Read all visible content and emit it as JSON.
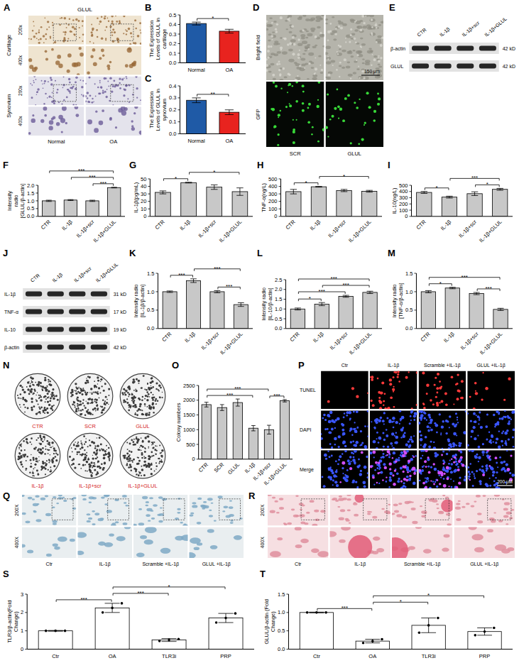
{
  "chart_data": [
    {
      "panel": "B",
      "type": "bar",
      "y_label": "The Expression Levels of GLUL in cartilage",
      "categories": [
        "Normal",
        "OA"
      ],
      "values": [
        0.41,
        0.33
      ],
      "errors": [
        0.015,
        0.02
      ],
      "colors": [
        "#1f5aa6",
        "#e8231f"
      ],
      "ylim": [
        0,
        0.5
      ],
      "yticks": [
        {
          "value": 0,
          "label": "0.0"
        },
        0.1,
        0.2,
        0.3,
        0.4,
        0.5
      ],
      "annotations": [
        {
          "from": "Normal",
          "to": "OA",
          "label": "*"
        }
      ]
    },
    {
      "panel": "C",
      "type": "bar",
      "y_label": "The Expression Levels of GLUL in synovium",
      "categories": [
        "Normal",
        "OA"
      ],
      "values": [
        0.28,
        0.18
      ],
      "errors": [
        0.02,
        0.02
      ],
      "colors": [
        "#1f5aa6",
        "#e8231f"
      ],
      "ylim": [
        0,
        0.4
      ],
      "yticks": [
        {
          "value": 0,
          "label": "0.0"
        },
        0.1,
        0.2,
        0.3,
        0.4
      ],
      "annotations": [
        {
          "from": "Normal",
          "to": "OA",
          "label": "**"
        }
      ]
    },
    {
      "panel": "F",
      "type": "bar",
      "y_label": "Intensity radio [GLUL/β-actin]",
      "categories": [
        "CTR",
        "IL-1β",
        "IL-1β+scr",
        "IL-1β+GLUL"
      ],
      "values": [
        1.0,
        1.05,
        1.0,
        1.85
      ],
      "errors": [
        0.04,
        0.03,
        0.04,
        0.02
      ],
      "color": "#c8c8c8",
      "ylim": [
        0,
        2
      ],
      "yticks": [
        {
          "value": 0,
          "label": "0.0"
        },
        0.5,
        {
          "value": 1,
          "label": "1.0"
        },
        1.5,
        {
          "value": 2,
          "label": "2.0"
        }
      ],
      "annotations": [
        {
          "from": "IL-1β+scr",
          "to": "IL-1β+GLUL",
          "label": "***"
        },
        {
          "from": "IL-1β",
          "to": "IL-1β+GLUL",
          "label": "***"
        },
        {
          "from": "CTR",
          "to": "IL-1β+GLUL",
          "label": "***"
        }
      ]
    },
    {
      "panel": "G",
      "type": "bar",
      "y_label": "IL-1β(pg/mL)",
      "categories": [
        "CTR",
        "IL-1β",
        "IL-1β+scr",
        "IL-1β+GLUL"
      ],
      "values": [
        32,
        45,
        39,
        33
      ],
      "errors": [
        2,
        0.5,
        3,
        5
      ],
      "color": "#c8c8c8",
      "ylim": [
        0,
        50
      ],
      "yticks": [
        0,
        10,
        20,
        30,
        40,
        50
      ],
      "annotations": [
        {
          "from": "CTR",
          "to": "IL-1β",
          "label": "*"
        },
        {
          "from": "IL-1β",
          "to": "IL-1β+GLUL",
          "label": "*"
        }
      ]
    },
    {
      "panel": "H",
      "type": "bar",
      "y_label": "TNF-α(ng/L)",
      "categories": [
        "CTR",
        "IL-1β",
        "IL-1β+scr",
        "IL-1β+GLUL"
      ],
      "values": [
        330,
        395,
        345,
        335
      ],
      "errors": [
        30,
        5,
        15,
        12
      ],
      "color": "#c8c8c8",
      "ylim": [
        0,
        500
      ],
      "yticks": [
        0,
        100,
        200,
        300,
        400,
        500
      ],
      "annotations": [
        {
          "from": "CTR",
          "to": "IL-1β",
          "label": "*"
        },
        {
          "from": "IL-1β",
          "to": "IL-1β+GLUL",
          "label": "*"
        }
      ]
    },
    {
      "panel": "I",
      "type": "bar",
      "y_label": "IL-10(ng/L)",
      "categories": [
        "CTR",
        "IL-1β",
        "IL-1β+scr",
        "IL-1β+GLUL"
      ],
      "values": [
        385,
        310,
        365,
        435
      ],
      "errors": [
        15,
        15,
        30,
        15
      ],
      "color": "#c8c8c8",
      "ylim": [
        0,
        500
      ],
      "yticks": [
        0,
        100,
        200,
        300,
        400,
        500
      ],
      "annotations": [
        {
          "from": "CTR",
          "to": "IL-1β",
          "label": "*"
        },
        {
          "from": "IL-1β+scr",
          "to": "IL-1β+GLUL",
          "label": "*"
        },
        {
          "from": "IL-1β",
          "to": "IL-1β+GLUL",
          "label": "***"
        }
      ]
    },
    {
      "panel": "K",
      "type": "bar",
      "y_label": "Intensity radio [IL-1β/β-actin]",
      "categories": [
        "CTR",
        "IL-1β",
        "IL-1β+scr",
        "IL-1β+GLUL"
      ],
      "values": [
        1.0,
        1.3,
        1.0,
        0.65
      ],
      "errors": [
        0.02,
        0.05,
        0.03,
        0.05
      ],
      "color": "#c8c8c8",
      "ylim": [
        0,
        1.5
      ],
      "yticks": [
        {
          "value": 0,
          "label": "0.0"
        },
        0.5,
        {
          "value": 1,
          "label": "1.0"
        },
        1.5
      ],
      "annotations": [
        {
          "from": "CTR",
          "to": "IL-1β",
          "label": "***"
        },
        {
          "from": "IL-1β+scr",
          "to": "IL-1β+GLUL",
          "label": "***"
        },
        {
          "from": "IL-1β",
          "to": "IL-1β+GLUL",
          "label": "***"
        }
      ]
    },
    {
      "panel": "L",
      "type": "bar",
      "y_label": "Intensity radio [IL-10/β-actin]",
      "categories": [
        "CTR",
        "IL-1β",
        "IL-1β+scr",
        "IL-1β+GLUL"
      ],
      "values": [
        1.0,
        1.25,
        1.65,
        1.85
      ],
      "errors": [
        0.05,
        0.08,
        0.05,
        0.06
      ],
      "color": "#c8c8c8",
      "ylim": [
        0,
        2.5
      ],
      "yticks": [
        {
          "value": 0,
          "label": "0.0"
        },
        0.5,
        {
          "value": 1,
          "label": "1.0"
        },
        1.5,
        {
          "value": 2,
          "label": "2.0"
        },
        2.5
      ],
      "annotations": [
        {
          "from": "CTR",
          "to": "IL-1β",
          "label": "*"
        },
        {
          "from": "CTR",
          "to": "IL-1β+scr",
          "label": "***"
        },
        {
          "from": "IL-1β",
          "to": "IL-1β+GLUL",
          "label": "***"
        },
        {
          "from": "CTR",
          "to": "IL-1β+GLUL",
          "label": "***"
        }
      ]
    },
    {
      "panel": "M",
      "type": "bar",
      "y_label": "Intensity radio [TNF-α/β-actin]",
      "categories": [
        "CTR",
        "IL-1β",
        "IL-1β+scr",
        "IL-1β+GLUL"
      ],
      "values": [
        1.0,
        1.1,
        0.95,
        0.52
      ],
      "errors": [
        0.03,
        0.02,
        0.03,
        0.03
      ],
      "color": "#c8c8c8",
      "ylim": [
        0,
        1.5
      ],
      "yticks": [
        {
          "value": 0,
          "label": "0.0"
        },
        0.5,
        {
          "value": 1,
          "label": "1.0"
        },
        1.5
      ],
      "annotations": [
        {
          "from": "CTR",
          "to": "IL-1β",
          "label": "*"
        },
        {
          "from": "IL-1β+scr",
          "to": "IL-1β+GLUL",
          "label": "***"
        },
        {
          "from": "CTR",
          "to": "IL-1β+GLUL",
          "label": "***"
        }
      ]
    },
    {
      "panel": "O",
      "type": "bar",
      "y_label": "Colony numbers",
      "categories": [
        "CTR",
        "SCR",
        "GLUL",
        "IL-1β",
        "IL-1β+scr",
        "IL-1β+GLUL"
      ],
      "values": [
        1850,
        1750,
        1920,
        1050,
        1000,
        1980
      ],
      "errors": [
        80,
        100,
        120,
        90,
        150,
        40
      ],
      "color": "#c8c8c8",
      "ylim": [
        0,
        2500
      ],
      "yticks": [
        0,
        500,
        1000,
        1500,
        2000,
        2500
      ],
      "annotations": [
        {
          "from": "IL-1β+scr",
          "to": "IL-1β+GLUL",
          "label": "***"
        },
        {
          "from": "CTR",
          "to": "IL-1β",
          "label": "***"
        },
        {
          "from": "CTR",
          "to": "IL-1β+scr",
          "label": "***"
        }
      ]
    },
    {
      "panel": "S",
      "type": "bar",
      "y_label": "TLR3/β-actin(Fold Change)",
      "categories": [
        "Ctr",
        "OA",
        "TLR3i",
        "PRP"
      ],
      "values": [
        1.0,
        2.25,
        0.5,
        1.7
      ],
      "errors": [
        0.02,
        0.25,
        0.08,
        0.25
      ],
      "points": [
        [
          1.0,
          1.0,
          1.0
        ],
        [
          2.0,
          2.25,
          2.5
        ],
        [
          0.45,
          0.5,
          0.55
        ],
        [
          1.45,
          1.7,
          1.95
        ]
      ],
      "color": "#ffffff",
      "ylim": [
        0,
        3
      ],
      "yticks": [
        0,
        1,
        2,
        3
      ],
      "annotations": [
        {
          "from": "Ctr",
          "to": "OA",
          "label": "***"
        },
        {
          "from": "OA",
          "to": "TLR3i",
          "label": "***"
        },
        {
          "from": "OA",
          "to": "PRP",
          "label": "*"
        }
      ]
    },
    {
      "panel": "T",
      "type": "bar",
      "y_label": "GLUL/β-actin (Fold Change)",
      "categories": [
        "Ctr",
        "OA",
        "TLR3i",
        "PRP"
      ],
      "values": [
        1.0,
        0.22,
        0.65,
        0.48
      ],
      "errors": [
        0.01,
        0.05,
        0.2,
        0.1
      ],
      "points": [
        [
          1.0,
          1.0,
          1.0
        ],
        [
          0.17,
          0.22,
          0.27
        ],
        [
          0.45,
          0.65,
          0.85
        ],
        [
          0.38,
          0.48,
          0.58
        ]
      ],
      "color": "#ffffff",
      "ylim": [
        0,
        1.5
      ],
      "yticks": [
        {
          "value": 0,
          "label": "0.0"
        },
        0.5,
        {
          "value": 1,
          "label": "1.0"
        },
        1.5
      ],
      "annotations": [
        {
          "from": "Ctr",
          "to": "OA",
          "label": "***"
        },
        {
          "from": "OA",
          "to": "TLR3i",
          "label": "*"
        },
        {
          "from": "OA",
          "to": "PRP",
          "label": "*"
        }
      ]
    }
  ],
  "panels": {
    "A": {
      "letter": "A",
      "title": "GLUL",
      "rows": [
        "Cartilage",
        "Synovium"
      ],
      "magnifications": [
        "200x",
        "400x"
      ],
      "columns": [
        "Normal",
        "OA"
      ]
    },
    "D": {
      "letter": "D",
      "rows": [
        "Bright field",
        "GFP"
      ],
      "columns": [
        "SCR",
        "GLUL"
      ],
      "scale_bar": "150 μm"
    },
    "E": {
      "letter": "E",
      "lanes": [
        "CTR",
        "IL-1β",
        "IL-1β+scr",
        "IL-1β+GLUL"
      ],
      "bands": [
        {
          "name": "β-actin",
          "size": "42 kD"
        },
        {
          "name": "GLUL",
          "size": "42 kD"
        }
      ]
    },
    "J": {
      "letter": "J",
      "lanes": [
        "CTR",
        "IL-1β",
        "IL-1β+scr",
        "IL-1β+GLUL"
      ],
      "bands": [
        {
          "name": "IL-1β",
          "size": "31 kD"
        },
        {
          "name": "TNF-α",
          "size": "17 kD"
        },
        {
          "name": "IL-10",
          "size": "19 kD"
        },
        {
          "name": "β-actin",
          "size": "42 kD"
        }
      ]
    },
    "N": {
      "letter": "N",
      "plates": [
        "CTR",
        "SCR",
        "GLUL",
        "IL-1β",
        "IL-1β+scr",
        "IL-1β+GLUL"
      ]
    },
    "P": {
      "letter": "P",
      "rows": [
        "TUNEL",
        "DAPI",
        "Merge"
      ],
      "columns": [
        "Ctr",
        "IL-1β",
        "Scramble +IL-1β",
        "GLUL +IL-1β"
      ],
      "scale_bar": "200 μM"
    },
    "Q": {
      "letter": "Q",
      "magnifications": [
        "200X",
        "400X"
      ],
      "columns": [
        "Ctr",
        "IL-1β",
        "Scramble +IL-1β",
        "GLUL +IL-1β"
      ]
    },
    "R": {
      "letter": "R",
      "magnifications": [
        "200X",
        "400X"
      ],
      "columns": [
        "Ctr",
        "IL-1β",
        "Scramble +IL-1β",
        "GLUL +IL-1β"
      ]
    }
  }
}
